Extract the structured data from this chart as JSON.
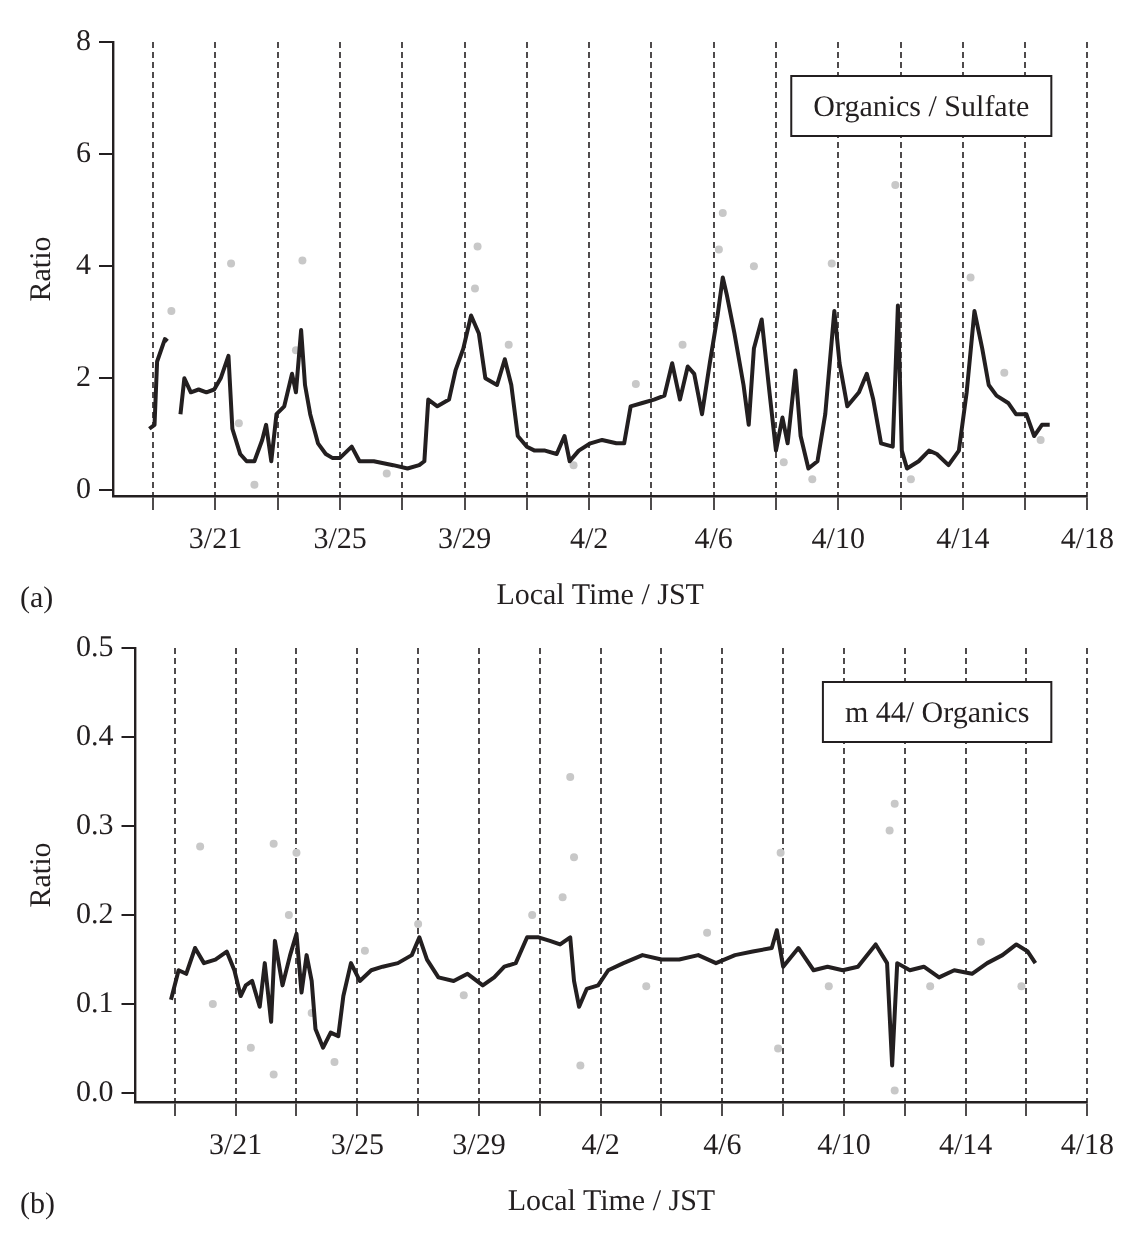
{
  "chart_data": [
    {
      "type": "line",
      "title": "Organics / Sulfate",
      "xlabel": "Local Time / JST",
      "ylabel": "Ratio",
      "annotations": [
        "(a)"
      ],
      "xlim": [
        "--03-17T17:00",
        "--04-18"
      ],
      "xticks": [
        {
          "value": "--03-19",
          "label": null
        },
        {
          "value": "--03-21",
          "label": "3/21"
        },
        {
          "value": "--03-23",
          "label": null
        },
        {
          "value": "--03-25",
          "label": "3/25"
        },
        {
          "value": "--03-27",
          "label": null
        },
        {
          "value": "--03-29",
          "label": "3/29"
        },
        {
          "value": "--03-31",
          "label": null
        },
        {
          "value": "--04-02",
          "label": "4/2"
        },
        {
          "value": "--04-04",
          "label": null
        },
        {
          "value": "--04-06",
          "label": "4/6"
        },
        {
          "value": "--04-08",
          "label": null
        },
        {
          "value": "--04-10",
          "label": "4/10"
        },
        {
          "value": "--04-12",
          "label": null
        },
        {
          "value": "--04-14",
          "label": "4/14"
        },
        {
          "value": "--04-16",
          "label": null
        },
        {
          "value": "--04-18",
          "label": "4/18"
        }
      ],
      "ylim": [
        -0.1,
        8
      ],
      "yticks": [
        0,
        2,
        4,
        6,
        8
      ],
      "grid": "x",
      "series": [
        {
          "type": "scatter",
          "color": "#c8c8c8",
          "x": [
            "--03-19T14:00",
            "--03-21T12:00",
            "--03-21T18:00",
            "--03-22T06:00",
            "--03-23T19:00",
            "--03-23T14:00",
            "--03-26T12:00",
            "--03-29T10:00",
            "--03-29T08:00",
            "--03-30T10:00",
            "--04-01T12:00",
            "--04-03T12:00",
            "--04-05T00:00",
            "--04-06T07:00",
            "--04-06T04:00",
            "--04-07T07:00",
            "--04-08T06:00",
            "--04-09T19:00",
            "--04-09T04:00",
            "--04-11T20:00",
            "--04-12T08:00",
            "--04-14T06:00",
            "--04-15T08:00",
            "--04-16T12:00"
          ],
          "values": [
            3.2,
            4.05,
            1.2,
            0.1,
            4.1,
            2.5,
            0.3,
            4.35,
            3.6,
            2.6,
            0.45,
            1.9,
            2.6,
            4.95,
            4.3,
            4.0,
            0.5,
            4.05,
            0.2,
            5.45,
            0.2,
            3.8,
            2.1,
            0.9
          ]
        },
        {
          "type": "line",
          "color": "#231f20",
          "x": [
            "--03-18T21:00",
            "--03-19T01:00",
            "--03-19T03:00",
            "--03-19T09:00",
            "--03-19T11:00",
            "--03-19T15:00",
            "--03-19T21:00",
            "--03-20T00:00",
            "--03-20T05:00",
            "--03-20T11:00",
            "--03-20T17:00",
            "--03-20T23:00",
            "--03-21T04:00",
            "--03-21T10:00",
            "--03-21T13:00",
            "--03-21T19:00",
            "--03-22T00:00",
            "--03-22T06:00",
            "--03-22T12:00",
            "--03-22T15:00",
            "--03-22T19:00",
            "--03-22T23:00",
            "--03-23T05:00",
            "--03-23T11:00",
            "--03-23T14:00",
            "--03-23T18:00",
            "--03-23T21:00",
            "--03-24T01:00",
            "--03-24T07:00",
            "--03-24T13:00",
            "--03-24T18:00",
            "--03-25T00:00",
            "--03-25T09:00",
            "--03-25T15:00",
            "--03-26T02:00",
            "--03-26T17:00",
            "--03-27T04:00",
            "--03-27T13:00",
            "--03-27T17:00",
            "--03-27T20:00",
            "--03-28T03:00",
            "--03-28T12:00",
            "--03-28T17:00",
            "--03-28T23:00",
            "--03-29T05:00",
            "--03-29T11:00",
            "--03-29T16:00",
            "--03-30T01:00",
            "--03-30T07:00",
            "--03-30T12:00",
            "--03-30T17:00",
            "--03-31T00:00",
            "--03-31T06:00",
            "--03-31T14:00",
            "--03-31T23:00",
            "--04-01T05:00",
            "--04-01T09:00",
            "--04-01T16:00",
            "--04-02T01:00",
            "--04-02T10:00",
            "--04-02T21:00",
            "--04-03T03:00",
            "--04-03T08:00",
            "--04-03T17:00",
            "--04-04T02:00",
            "--04-04T10:00",
            "--04-04T16:00",
            "--04-04T22:00",
            "--04-05T04:00",
            "--04-05T09:00",
            "--04-05T15:00",
            "--04-05T21:00",
            "--04-06T03:00",
            "--04-06T07:00",
            "--04-06T10:00",
            "--04-06T16:00",
            "--04-06T23:00",
            "--04-07T03:00",
            "--04-07T07:00",
            "--04-07T13:00",
            "--04-07T19:00",
            "--04-08T00:00",
            "--04-08T05:00",
            "--04-08T09:00",
            "--04-08T15:00",
            "--04-08T19:00",
            "--04-09T01:00",
            "--04-09T08:00",
            "--04-09T14:00",
            "--04-09T21:00",
            "--04-10T01:00",
            "--04-10T07:00",
            "--04-10T16:00",
            "--04-10T22:00",
            "--04-11T03:00",
            "--04-11T09:00",
            "--04-11T18:00",
            "--04-11T22:00",
            "--04-12T01:00",
            "--04-12T05:00",
            "--04-12T14:00",
            "--04-12T22:00",
            "--04-13T04:00",
            "--04-13T13:00",
            "--04-13T21:00",
            "--04-14T03:00",
            "--04-14T09:00",
            "--04-14T15:00",
            "--04-14T20:00",
            "--04-15T02:00",
            "--04-15T11:00",
            "--04-15T17:00",
            "--04-16T01:00",
            "--04-16T07:00",
            "--04-16T13:00",
            "--04-16T19:00"
          ],
          "values": [
            1.1,
            1.17,
            2.3,
            2.7,
            2.66,
            null,
            1.36,
            2.0,
            1.75,
            1.8,
            1.75,
            1.8,
            2.0,
            2.4,
            1.1,
            0.65,
            0.52,
            0.52,
            0.9,
            1.17,
            0.52,
            1.36,
            1.5,
            2.08,
            1.75,
            2.86,
            1.88,
            1.36,
            0.84,
            0.65,
            0.58,
            0.58,
            0.78,
            0.52,
            0.52,
            0.45,
            0.39,
            0.45,
            0.52,
            1.62,
            1.5,
            1.62,
            2.14,
            2.53,
            3.12,
            2.8,
            2.0,
            1.88,
            2.34,
            1.88,
            0.97,
            0.78,
            0.71,
            0.71,
            0.65,
            0.97,
            0.52,
            0.71,
            0.84,
            0.9,
            0.84,
            0.84,
            1.5,
            1.56,
            1.62,
            1.69,
            2.27,
            1.62,
            2.21,
            2.08,
            1.36,
            2.27,
            3.12,
            3.8,
            3.5,
            2.8,
            1.88,
            1.17,
            2.53,
            3.05,
            1.75,
            0.71,
            1.3,
            0.84,
            2.14,
            0.97,
            0.39,
            0.52,
            1.36,
            3.2,
            2.27,
            1.5,
            1.75,
            2.08,
            1.62,
            0.84,
            0.78,
            3.3,
            0.71,
            0.39,
            0.52,
            0.71,
            0.65,
            0.45,
            0.71,
            1.75,
            3.2,
            2.53,
            1.88,
            1.69,
            1.56,
            1.36,
            1.36,
            0.97,
            1.17,
            1.17
          ]
        }
      ]
    },
    {
      "type": "line",
      "title": "m 44/ Organics",
      "xlabel": "Local Time / JST",
      "ylabel": "Ratio",
      "annotations": [
        "(b)"
      ],
      "xlim": [
        "--03-17T17:00",
        "--04-18"
      ],
      "xticks": [
        {
          "value": "--03-19",
          "label": null
        },
        {
          "value": "--03-21",
          "label": "3/21"
        },
        {
          "value": "--03-23",
          "label": null
        },
        {
          "value": "--03-25",
          "label": "3/25"
        },
        {
          "value": "--03-27",
          "label": null
        },
        {
          "value": "--03-29",
          "label": "3/29"
        },
        {
          "value": "--03-31",
          "label": null
        },
        {
          "value": "--04-02",
          "label": "4/2"
        },
        {
          "value": "--04-04",
          "label": null
        },
        {
          "value": "--04-06",
          "label": "4/6"
        },
        {
          "value": "--04-08",
          "label": null
        },
        {
          "value": "--04-10",
          "label": "4/10"
        },
        {
          "value": "--04-12",
          "label": null
        },
        {
          "value": "--04-14",
          "label": "4/14"
        },
        {
          "value": "--04-16",
          "label": null
        },
        {
          "value": "--04-18",
          "label": "4/18"
        }
      ],
      "ylim": [
        -0.01,
        0.5
      ],
      "yticks": [
        {
          "value": 0,
          "label": "0.0"
        },
        0.1,
        0.2,
        0.3,
        0.4,
        0.5
      ],
      "grid": "x",
      "series": [
        {
          "type": "scatter",
          "color": "#c8c8c8",
          "x": [
            "--03-19T20:00",
            "--03-20T06:00",
            "--03-21T12:00",
            "--03-22T06:00",
            "--03-22T06:00",
            "--03-22T18:00",
            "--03-23T00:00",
            "--03-23T12:00",
            "--03-24T06:00",
            "--03-25T06:00",
            "--03-27T00:00",
            "--03-28T12:00",
            "--03-30T18:00",
            "--03-31T18:00",
            "--04-01T00:00",
            "--04-01T03:00",
            "--04-01T08:00",
            "--04-03T12:00",
            "--04-05T12:00",
            "--04-07T22:00",
            "--04-07T20:00",
            "--04-09T12:00",
            "--04-11T12:00",
            "--04-11T16:00",
            "--04-11T16:00",
            "--04-12T20:00",
            "--04-14T12:00",
            "--04-15T20:00"
          ],
          "values": [
            0.277,
            0.1,
            0.051,
            0.28,
            0.021,
            0.2,
            0.27,
            0.09,
            0.035,
            0.16,
            0.19,
            0.11,
            0.2,
            0.22,
            0.355,
            0.265,
            0.031,
            0.12,
            0.18,
            0.27,
            0.05,
            0.12,
            0.295,
            0.325,
            0.003,
            0.12,
            0.17,
            0.12
          ]
        },
        {
          "type": "line",
          "color": "#231f20",
          "x": [
            "--03-18T21:00",
            "--03-19T03:00",
            "--03-19T09:00",
            "--03-19T16:00",
            "--03-19T23:00",
            "--03-20T08:00",
            "--03-20T17:00",
            "--03-20T23:00",
            "--03-21T04:00",
            "--03-21T08:00",
            "--03-21T13:00",
            "--03-21T19:00",
            "--03-21T23:00",
            "--03-22T04:00",
            "--03-22T07:00",
            "--03-22T13:00",
            "--03-22T19:00",
            "--03-23T00:00",
            "--03-23T04:00",
            "--03-23T08:00",
            "--03-23T12:00",
            "--03-23T15:00",
            "--03-23T21:00",
            "--03-24T03:00",
            "--03-24T09:00",
            "--03-24T13:00",
            "--03-24T19:00",
            "--03-25T02:00",
            "--03-25T11:00",
            "--03-25T20:00",
            "--03-26T08:00",
            "--03-26T19:00",
            "--03-27T01:00",
            "--03-27T07:00",
            "--03-27T16:00",
            "--03-28T04:00",
            "--03-28T15:00",
            "--03-29T03:00",
            "--03-29T12:00",
            "--03-29T20:00",
            "--03-30T05:00",
            "--03-30T14:00",
            "--03-30T23:00",
            "--03-31T08:00",
            "--03-31T16:00",
            "--04-01T00:00",
            "--04-01T03:00",
            "--04-01T07:00",
            "--04-01T13:00",
            "--04-01T22:00",
            "--04-02T06:00",
            "--04-02T18:00",
            "--04-03T09:00",
            "--04-04T00:00",
            "--04-04T14:00",
            "--04-05T05:00",
            "--04-05T19:00",
            "--04-06T10:00",
            "--04-07T00:00",
            "--04-07T15:00",
            "--04-07T19:00",
            "--04-08T00:00",
            "--04-08T12:00",
            "--04-09T00:00",
            "--04-09T11:00",
            "--04-09T23:00",
            "--04-10T11:00",
            "--04-11T01:00",
            "--04-11T10:00",
            "--04-11T14:00",
            "--04-11T18:00",
            "--04-12T04:00",
            "--04-12T15:00",
            "--04-13T03:00",
            "--04-13T15:00",
            "--04-14T05:00",
            "--04-14T17:00",
            "--04-15T05:00",
            "--04-15T16:00",
            "--04-16T01:00",
            "--04-16T07:00"
          ],
          "values": [
            0.105,
            0.138,
            0.134,
            0.163,
            0.146,
            0.15,
            0.159,
            0.138,
            0.109,
            0.121,
            0.126,
            0.097,
            0.146,
            0.08,
            0.171,
            0.121,
            0.155,
            0.179,
            0.113,
            0.155,
            0.126,
            0.072,
            0.051,
            0.068,
            0.064,
            0.109,
            0.146,
            0.126,
            0.138,
            0.142,
            0.146,
            0.155,
            0.175,
            0.15,
            0.13,
            0.126,
            0.134,
            0.121,
            0.13,
            0.142,
            0.146,
            0.175,
            0.175,
            0.171,
            0.167,
            0.175,
            0.126,
            0.097,
            0.117,
            0.121,
            0.138,
            0.146,
            0.155,
            0.15,
            0.15,
            0.155,
            0.146,
            0.155,
            0.159,
            0.163,
            0.183,
            0.142,
            0.163,
            0.138,
            0.142,
            0.138,
            0.142,
            0.167,
            0.146,
            0.031,
            0.146,
            0.138,
            0.142,
            0.13,
            0.138,
            0.134,
            0.146,
            0.155,
            0.167,
            0.159,
            0.146
          ]
        }
      ]
    }
  ]
}
